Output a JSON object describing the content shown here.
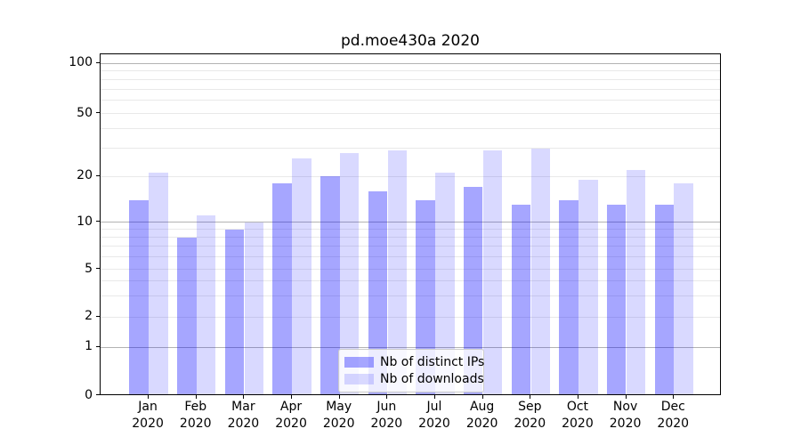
{
  "title": "pd.moe430a 2020",
  "colors": {
    "ips_bar": "rgba(0,0,255,0.35)",
    "downloads_bar": "rgba(0,0,255,0.15)",
    "major_gridline": "#b3b3b3",
    "minor_gridline": "#e9e9e9",
    "spine": "#000000"
  },
  "legend": {
    "items": [
      {
        "label": "Nb of distinct IPs",
        "series_index": 0
      },
      {
        "label": "Nb of downloads",
        "series_index": 1
      }
    ],
    "position": "lower center"
  },
  "chart_data": {
    "type": "bar",
    "title": "pd.moe430a 2020",
    "categories": [
      "Jan",
      "Feb",
      "Mar",
      "Apr",
      "May",
      "Jun",
      "Jul",
      "Aug",
      "Sep",
      "Oct",
      "Nov",
      "Dec"
    ],
    "category_sub_label": "2020",
    "series": [
      {
        "name": "Nb of distinct IPs",
        "values": [
          14,
          8,
          9,
          18,
          20,
          16,
          14,
          17,
          13,
          14,
          13,
          13
        ]
      },
      {
        "name": "Nb of downloads",
        "values": [
          21,
          11,
          10,
          26,
          28,
          29,
          21,
          29,
          30,
          19,
          22,
          18
        ]
      }
    ],
    "xlabel": "",
    "ylabel": "",
    "yscale": "symlog",
    "ylim": [
      0,
      113
    ],
    "yticks": [
      0,
      1,
      2,
      5,
      10,
      20,
      50,
      100
    ],
    "major_gridlines": [
      1,
      10,
      100
    ],
    "minor_gridlines": [
      2,
      3,
      4,
      5,
      6,
      7,
      8,
      9,
      20,
      30,
      40,
      50,
      60,
      70,
      80,
      90
    ],
    "grid": true,
    "legend_position": "lower center"
  }
}
